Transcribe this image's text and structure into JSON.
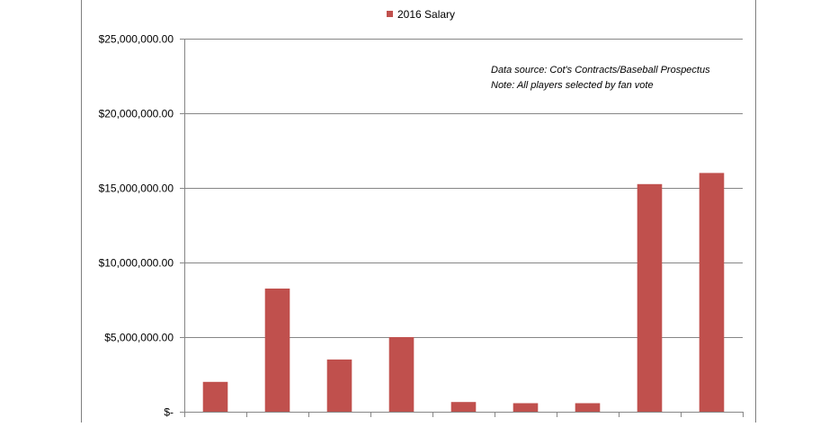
{
  "chart_data": {
    "type": "bar",
    "legend": {
      "placement": "top-center",
      "entries": [
        "2016 Salary"
      ]
    },
    "series": [
      {
        "name": "2016 Salary",
        "color": "#c0504d",
        "values": [
          2000000,
          8250000,
          3500000,
          5000000,
          650000,
          575000,
          575000,
          15250000,
          16000000
        ]
      }
    ],
    "categories_count": 9,
    "ylim": [
      0,
      25000000
    ],
    "y_ticks": [
      0,
      5000000,
      10000000,
      15000000,
      20000000,
      25000000
    ],
    "y_tick_labels": [
      "$-",
      "$5,000,000.00",
      "$10,000,000.00",
      "$15,000,000.00",
      "$20,000,000.00",
      "$25,000,000.00"
    ],
    "grid": true,
    "annotations": [
      "Data source: Cot's Contracts/Baseball Prospectus",
      "Note: All players selected by fan vote"
    ]
  }
}
